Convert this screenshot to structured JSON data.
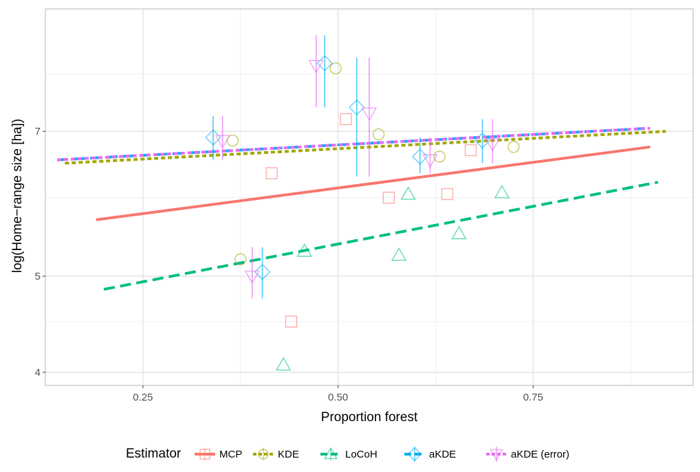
{
  "chart_data": {
    "type": "scatter",
    "xlabel": "Proportion forest",
    "ylabel": "log(Home−range size [ha])",
    "xlim": [
      0.125,
      0.955
    ],
    "ylim": [
      3.88,
      9.3
    ],
    "log_scale_y": true,
    "grid": true,
    "legend_placement": "bottom",
    "x_ticks": [
      0.25,
      0.5,
      0.75
    ],
    "x_tick_labels": [
      "0.25",
      "0.50",
      "0.75"
    ],
    "y_ticks": [
      4,
      5,
      7
    ],
    "y_tick_labels": [
      "4",
      "5",
      "7"
    ],
    "y_minor_gridlines": [
      4.5,
      6,
      8
    ],
    "legend": {
      "title": "Estimator",
      "entries": [
        "MCP",
        "KDE",
        "LoCoH",
        "aKDE",
        "aKDE (error)"
      ]
    },
    "series": [
      {
        "name": "MCP",
        "color": "#F8766D",
        "marker": "square",
        "line_style": "solid",
        "points": [
          [
            0.415,
            6.35
          ],
          [
            0.44,
            4.5
          ],
          [
            0.51,
            7.2
          ],
          [
            0.565,
            6.0
          ],
          [
            0.64,
            6.05
          ],
          [
            0.67,
            6.7
          ]
        ],
        "trend": [
          [
            0.19,
            5.7
          ],
          [
            0.9,
            6.75
          ]
        ]
      },
      {
        "name": "KDE",
        "color": "#A3A500",
        "marker": "circle",
        "line_style": "dotted",
        "points": [
          [
            0.365,
            6.85
          ],
          [
            0.375,
            5.2
          ],
          [
            0.497,
            8.1
          ],
          [
            0.552,
            6.95
          ],
          [
            0.63,
            6.6
          ],
          [
            0.725,
            6.75
          ]
        ],
        "trend": [
          [
            0.15,
            6.5
          ],
          [
            0.92,
            7.0
          ]
        ]
      },
      {
        "name": "LoCoH",
        "color": "#00BF7D",
        "marker": "triangle",
        "line_style": "dashed",
        "points": [
          [
            0.43,
            4.07
          ],
          [
            0.457,
            5.3
          ],
          [
            0.578,
            5.25
          ],
          [
            0.59,
            6.05
          ],
          [
            0.655,
            5.52
          ],
          [
            0.71,
            6.07
          ]
        ],
        "trend": [
          [
            0.2,
            4.85
          ],
          [
            0.91,
            6.22
          ]
        ]
      },
      {
        "name": "aKDE",
        "color": "#00B0F6",
        "marker": "diamond",
        "line_style": "dashed",
        "points": [
          [
            0.34,
            6.9
          ],
          [
            0.403,
            5.05
          ],
          [
            0.483,
            8.2
          ],
          [
            0.524,
            7.4
          ],
          [
            0.605,
            6.6
          ],
          [
            0.685,
            6.85
          ]
        ],
        "error_low": [
          6.55,
          4.75,
          7.4,
          6.3,
          6.35,
          6.5
        ],
        "error_high": [
          7.25,
          5.35,
          8.75,
          8.3,
          6.9,
          7.2
        ],
        "trend": [
          [
            0.14,
            6.55
          ],
          [
            0.9,
            7.05
          ]
        ]
      },
      {
        "name": "aKDE (error)",
        "color": "#E76BF3",
        "marker": "triangle-down",
        "line_style": "dotted",
        "points": [
          [
            0.352,
            6.85
          ],
          [
            0.39,
            5.0
          ],
          [
            0.472,
            8.15
          ],
          [
            0.54,
            7.3
          ],
          [
            0.618,
            6.55
          ],
          [
            0.698,
            6.8
          ]
        ],
        "error_low": [
          6.55,
          4.75,
          7.4,
          6.3,
          6.35,
          6.5
        ],
        "error_high": [
          7.25,
          5.35,
          8.75,
          8.3,
          6.9,
          7.2
        ],
        "trend": [
          [
            0.14,
            6.55
          ],
          [
            0.9,
            7.05
          ]
        ]
      }
    ]
  }
}
